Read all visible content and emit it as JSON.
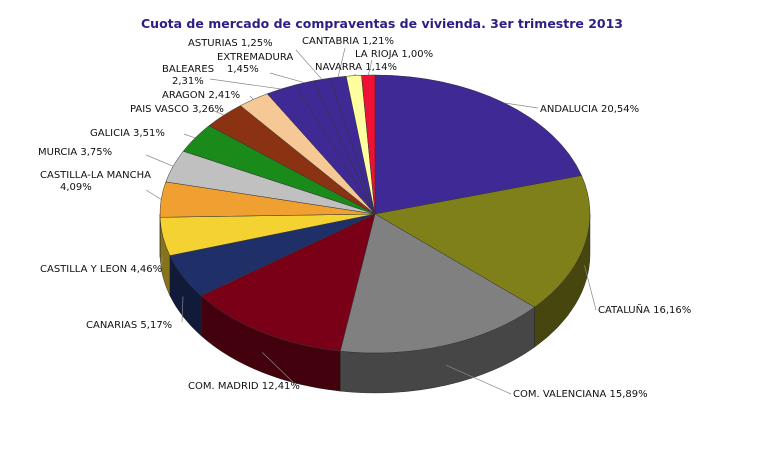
{
  "chart_data": {
    "type": "pie",
    "style": "3d",
    "title": "Cuota de mercado de compraventas de vivienda. 3er trimestre 2013",
    "slices": [
      {
        "label": "ANDALUCIA",
        "value": 20.54,
        "text": "ANDALUCIA 20,54%",
        "color": "#3f2a95"
      },
      {
        "label": "CATALUÑA",
        "value": 16.16,
        "text": "CATALUÑA 16,16%",
        "color": "#7f801a"
      },
      {
        "label": "COM. VALENCIANA",
        "value": 15.89,
        "text": "COM. VALENCIANA 15,89%",
        "color": "#808080"
      },
      {
        "label": "COM. MADRID",
        "value": 12.41,
        "text": "COM. MADRID 12,41%",
        "color": "#7a0018"
      },
      {
        "label": "CANARIAS",
        "value": 5.17,
        "text": "CANARIAS 5,17%",
        "color": "#1f3068"
      },
      {
        "label": "CASTILLA Y LEON",
        "value": 4.46,
        "text": "CASTILLA Y LEON 4,46%",
        "color": "#f4d232"
      },
      {
        "label": "CASTILLA-LA MANCHA",
        "value": 4.09,
        "text": [
          "CASTILLA-LA MANCHA",
          "4,09%"
        ],
        "color": "#f0a030"
      },
      {
        "label": "MURCIA",
        "value": 3.75,
        "text": "MURCIA 3,75%",
        "color": "#c0c0c0"
      },
      {
        "label": "GALICIA",
        "value": 3.51,
        "text": "GALICIA 3,51%",
        "color": "#1a8a1a"
      },
      {
        "label": "PAIS VASCO",
        "value": 3.26,
        "text": "PAIS VASCO 3,26%",
        "color": "#8a3212"
      },
      {
        "label": "ARAGON",
        "value": 2.41,
        "text": "ARAGON 2,41%",
        "color": "#f5c896"
      },
      {
        "label": "BALEARES",
        "value": 2.31,
        "text": [
          "BALEARES",
          "2,31%"
        ],
        "color": "#3f2a95"
      },
      {
        "label": "EXTREMADURA",
        "value": 1.45,
        "text": [
          "EXTREMADURA",
          "1,45%"
        ],
        "color": "#3f2a95"
      },
      {
        "label": "ASTURIAS",
        "value": 1.25,
        "text": "ASTURIAS 1,25%",
        "color": "#3f2a95"
      },
      {
        "label": "CANTABRIA",
        "value": 1.21,
        "text": "CANTABRIA 1,21%",
        "color": "#3f2a95"
      },
      {
        "label": "NAVARRA",
        "value": 1.14,
        "text": "NAVARRA 1,14%",
        "color": "#ffffa0"
      },
      {
        "label": "LA RIOJA",
        "value": 1.0,
        "text": "LA RIOJA 1,00%",
        "color": "#ee1133"
      }
    ]
  }
}
